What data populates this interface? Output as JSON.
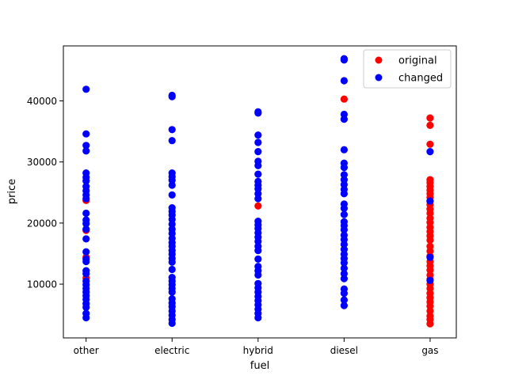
{
  "chart_data": {
    "type": "scatter",
    "title": "",
    "xlabel": "fuel",
    "ylabel": "price",
    "categories": [
      "other",
      "electric",
      "hybrid",
      "diesel",
      "gas"
    ],
    "yticks": [
      10000,
      20000,
      30000,
      40000
    ],
    "ylim": [
      1200,
      49000
    ],
    "grid": false,
    "legend_position": "top-right",
    "series": [
      {
        "name": "original",
        "color": "#ff0000",
        "points": [
          [
            "other",
            23700
          ],
          [
            "other",
            18800
          ],
          [
            "other",
            14400
          ],
          [
            "other",
            11000
          ],
          [
            "hybrid",
            22800
          ],
          [
            "diesel",
            40300
          ],
          [
            "gas",
            37200
          ],
          [
            "gas",
            36000
          ],
          [
            "gas",
            32900
          ],
          [
            "gas",
            27100
          ],
          [
            "gas",
            26600
          ],
          [
            "gas",
            26000
          ],
          [
            "gas",
            25400
          ],
          [
            "gas",
            24800
          ],
          [
            "gas",
            24200
          ],
          [
            "gas",
            23600
          ],
          [
            "gas",
            23000
          ],
          [
            "gas",
            22300
          ],
          [
            "gas",
            21600
          ],
          [
            "gas",
            20800
          ],
          [
            "gas",
            20100
          ],
          [
            "gas",
            19300
          ],
          [
            "gas",
            18600
          ],
          [
            "gas",
            17900
          ],
          [
            "gas",
            17200
          ],
          [
            "gas",
            16200
          ],
          [
            "gas",
            15400
          ],
          [
            "gas",
            14600
          ],
          [
            "gas",
            13700
          ],
          [
            "gas",
            13000
          ],
          [
            "gas",
            12300
          ],
          [
            "gas",
            11500
          ],
          [
            "gas",
            10800
          ],
          [
            "gas",
            10000
          ],
          [
            "gas",
            9300
          ],
          [
            "gas",
            8500
          ],
          [
            "gas",
            7800
          ],
          [
            "gas",
            7100
          ],
          [
            "gas",
            6400
          ],
          [
            "gas",
            5600
          ],
          [
            "gas",
            4800
          ],
          [
            "gas",
            4200
          ],
          [
            "gas",
            3500
          ]
        ]
      },
      {
        "name": "changed",
        "color": "#0000ff",
        "points": [
          [
            "other",
            41900
          ],
          [
            "other",
            34600
          ],
          [
            "other",
            32700
          ],
          [
            "other",
            31800
          ],
          [
            "other",
            28200
          ],
          [
            "other",
            27500
          ],
          [
            "other",
            26900
          ],
          [
            "other",
            26000
          ],
          [
            "other",
            25300
          ],
          [
            "other",
            24600
          ],
          [
            "other",
            24000
          ],
          [
            "other",
            21600
          ],
          [
            "other",
            20500
          ],
          [
            "other",
            19900
          ],
          [
            "other",
            19000
          ],
          [
            "other",
            17400
          ],
          [
            "other",
            15300
          ],
          [
            "other",
            14100
          ],
          [
            "other",
            13700
          ],
          [
            "other",
            12200
          ],
          [
            "other",
            11700
          ],
          [
            "other",
            10500
          ],
          [
            "other",
            9900
          ],
          [
            "other",
            9300
          ],
          [
            "other",
            8700
          ],
          [
            "other",
            8100
          ],
          [
            "other",
            7500
          ],
          [
            "other",
            6800
          ],
          [
            "other",
            6200
          ],
          [
            "other",
            5200
          ],
          [
            "other",
            4500
          ],
          [
            "electric",
            40900
          ],
          [
            "electric",
            40700
          ],
          [
            "electric",
            35300
          ],
          [
            "electric",
            33500
          ],
          [
            "electric",
            28200
          ],
          [
            "electric",
            27600
          ],
          [
            "electric",
            27000
          ],
          [
            "electric",
            26200
          ],
          [
            "electric",
            24600
          ],
          [
            "electric",
            22500
          ],
          [
            "electric",
            21900
          ],
          [
            "electric",
            21300
          ],
          [
            "electric",
            20600
          ],
          [
            "electric",
            19800
          ],
          [
            "electric",
            19000
          ],
          [
            "electric",
            18300
          ],
          [
            "electric",
            17500
          ],
          [
            "electric",
            16800
          ],
          [
            "electric",
            16200
          ],
          [
            "electric",
            15500
          ],
          [
            "electric",
            14900
          ],
          [
            "electric",
            14200
          ],
          [
            "electric",
            13600
          ],
          [
            "electric",
            12400
          ],
          [
            "electric",
            11100
          ],
          [
            "electric",
            10500
          ],
          [
            "electric",
            9900
          ],
          [
            "electric",
            9300
          ],
          [
            "electric",
            8700
          ],
          [
            "electric",
            7600
          ],
          [
            "electric",
            6900
          ],
          [
            "electric",
            6300
          ],
          [
            "electric",
            5600
          ],
          [
            "electric",
            4900
          ],
          [
            "electric",
            4200
          ],
          [
            "electric",
            3600
          ],
          [
            "hybrid",
            38200
          ],
          [
            "hybrid",
            38000
          ],
          [
            "hybrid",
            34400
          ],
          [
            "hybrid",
            33200
          ],
          [
            "hybrid",
            31700
          ],
          [
            "hybrid",
            30100
          ],
          [
            "hybrid",
            29400
          ],
          [
            "hybrid",
            28000
          ],
          [
            "hybrid",
            26800
          ],
          [
            "hybrid",
            26200
          ],
          [
            "hybrid",
            25600
          ],
          [
            "hybrid",
            24800
          ],
          [
            "hybrid",
            24000
          ],
          [
            "hybrid",
            20300
          ],
          [
            "hybrid",
            19700
          ],
          [
            "hybrid",
            19100
          ],
          [
            "hybrid",
            18400
          ],
          [
            "hybrid",
            17700
          ],
          [
            "hybrid",
            17000
          ],
          [
            "hybrid",
            16200
          ],
          [
            "hybrid",
            15500
          ],
          [
            "hybrid",
            14100
          ],
          [
            "hybrid",
            12900
          ],
          [
            "hybrid",
            12200
          ],
          [
            "hybrid",
            11500
          ],
          [
            "hybrid",
            10100
          ],
          [
            "hybrid",
            9400
          ],
          [
            "hybrid",
            8700
          ],
          [
            "hybrid",
            8000
          ],
          [
            "hybrid",
            7300
          ],
          [
            "hybrid",
            6600
          ],
          [
            "hybrid",
            5900
          ],
          [
            "hybrid",
            5200
          ],
          [
            "hybrid",
            4500
          ],
          [
            "diesel",
            46900
          ],
          [
            "diesel",
            46700
          ],
          [
            "diesel",
            43300
          ],
          [
            "diesel",
            37800
          ],
          [
            "diesel",
            37000
          ],
          [
            "diesel",
            32000
          ],
          [
            "diesel",
            29800
          ],
          [
            "diesel",
            29100
          ],
          [
            "diesel",
            27900
          ],
          [
            "diesel",
            27100
          ],
          [
            "diesel",
            26300
          ],
          [
            "diesel",
            25500
          ],
          [
            "diesel",
            24800
          ],
          [
            "diesel",
            23100
          ],
          [
            "diesel",
            22400
          ],
          [
            "diesel",
            21400
          ],
          [
            "diesel",
            20200
          ],
          [
            "diesel",
            19600
          ],
          [
            "diesel",
            18900
          ],
          [
            "diesel",
            18000
          ],
          [
            "diesel",
            17300
          ],
          [
            "diesel",
            16500
          ],
          [
            "diesel",
            15700
          ],
          [
            "diesel",
            14900
          ],
          [
            "diesel",
            14200
          ],
          [
            "diesel",
            13500
          ],
          [
            "diesel",
            12600
          ],
          [
            "diesel",
            11700
          ],
          [
            "diesel",
            10900
          ],
          [
            "diesel",
            9200
          ],
          [
            "diesel",
            8500
          ],
          [
            "diesel",
            7400
          ],
          [
            "diesel",
            6500
          ],
          [
            "gas",
            31700
          ],
          [
            "gas",
            23600
          ],
          [
            "gas",
            14400
          ],
          [
            "gas",
            10600
          ]
        ]
      }
    ]
  }
}
